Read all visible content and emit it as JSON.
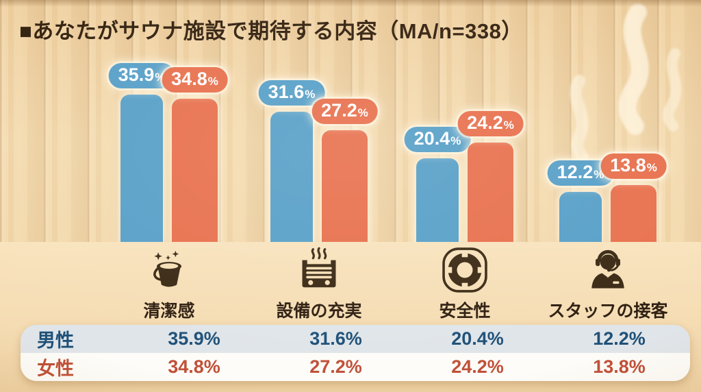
{
  "page": {
    "title": "■あなたがサウナ施設で期待する内容（MA/n=338）"
  },
  "chart_data": {
    "type": "bar",
    "title": "あなたがサウナ施設で期待する内容（MA/n=338）",
    "survey_note": "MA/n=338",
    "categories": [
      "清潔感",
      "設備の充実",
      "安全性",
      "スタッフの接客"
    ],
    "series": [
      {
        "name": "男性",
        "color": "#58a0c8",
        "values": [
          35.9,
          31.6,
          20.4,
          12.2
        ]
      },
      {
        "name": "女性",
        "color": "#e8714e",
        "values": [
          34.8,
          27.2,
          24.2,
          13.8
        ]
      }
    ],
    "value_suffix": "%",
    "ylim": [
      0,
      40
    ],
    "grid": false,
    "legend_position": "bottom-table",
    "category_icons": [
      "bucket-sparkle-icon",
      "sauna-heater-icon",
      "life-ring-icon",
      "staff-headset-icon"
    ]
  },
  "colors": {
    "male": "#58a0c8",
    "female": "#e8714e",
    "title_text": "#33210f",
    "icon": "#3a2914",
    "category_label": "#2e1e10",
    "table_male_text": "#1e5078",
    "table_female_text": "#c05038",
    "table_male_row_bg": "#e0e5e9",
    "table_female_row_bg": "#fdfcf8",
    "wood_base": "#f2d6a8"
  }
}
